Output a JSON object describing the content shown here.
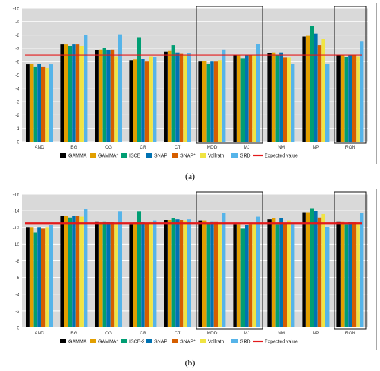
{
  "colors": {
    "GAMMA": "#000000",
    "GAMMA*": "#e29f00",
    "ISCE": "#009e73",
    "SNAP": "#0072b2",
    "SNAP*": "#d55e00",
    "Vollrath": "#f0e442",
    "GRD": "#56b4e9",
    "expected": "#e31a1c",
    "plot_bg": "#d9d9d9",
    "grid": "#ffffff"
  },
  "panels": [
    {
      "caption_prefix": "(",
      "caption_letter": "a",
      "caption_suffix": ")"
    },
    {
      "caption_prefix": "(",
      "caption_letter": "b",
      "caption_suffix": ")"
    }
  ],
  "chart_data": [
    {
      "type": "bar",
      "title": "",
      "xlabel": "",
      "ylabel": "",
      "ylim": [
        0,
        -10
      ],
      "yticks": [
        "0",
        "-1",
        "-2",
        "-3",
        "-4",
        "-5",
        "-6",
        "-7",
        "-8",
        "-9",
        "-10"
      ],
      "grid": true,
      "legend_position": "bottom",
      "categories": [
        "AND",
        "BG",
        "CG",
        "CR",
        "CT",
        "MDD",
        "MJ",
        "NM",
        "NP",
        "RON"
      ],
      "highlighted_categories": [
        [
          "MDD",
          "MJ"
        ],
        [
          "RON"
        ]
      ],
      "series": [
        {
          "name": "GAMMA",
          "values": [
            -5.8,
            -7.3,
            -6.85,
            -6.1,
            -6.75,
            -6.0,
            -6.45,
            -6.65,
            -7.9,
            -6.5
          ]
        },
        {
          "name": "GAMMA*",
          "values": [
            -5.85,
            -7.3,
            -6.9,
            -6.15,
            -6.8,
            -6.05,
            -6.5,
            -6.7,
            -7.95,
            -6.5
          ]
        },
        {
          "name": "ISCE",
          "values": [
            -5.6,
            -7.2,
            -7.0,
            -7.8,
            -7.25,
            -5.85,
            -6.25,
            -6.55,
            -8.7,
            -6.35
          ]
        },
        {
          "name": "SNAP",
          "values": [
            -5.85,
            -7.3,
            -6.85,
            -6.2,
            -6.7,
            -6.0,
            -6.45,
            -6.7,
            -8.1,
            -6.5
          ]
        },
        {
          "name": "SNAP*",
          "values": [
            -5.6,
            -7.3,
            -6.9,
            -6.0,
            -6.6,
            -6.0,
            -6.45,
            -6.3,
            -7.25,
            -6.45
          ]
        },
        {
          "name": "Vollrath",
          "values": [
            -5.55,
            -7.2,
            -6.4,
            -6.4,
            -6.5,
            -6.1,
            -6.5,
            -6.3,
            -7.7,
            -6.4
          ]
        },
        {
          "name": "GRD",
          "values": [
            -5.8,
            -8.0,
            -8.05,
            -6.35,
            -6.65,
            -6.9,
            -7.35,
            -5.85,
            -5.85,
            -7.5
          ]
        }
      ],
      "expected_value": -6.5,
      "legend_labels": [
        "GAMMA",
        "GAMMA*",
        "ISCE",
        "SNAP",
        "SNAP*",
        "Vollrath",
        "GRD"
      ],
      "expected_label": "Expected value"
    },
    {
      "type": "bar",
      "title": "",
      "xlabel": "",
      "ylabel": "",
      "ylim": [
        0,
        -16
      ],
      "yticks": [
        "0",
        "-2",
        "-4",
        "-6",
        "-8",
        "-10",
        "-12",
        "-14",
        "-16"
      ],
      "grid": true,
      "legend_position": "bottom",
      "categories": [
        "AND",
        "BG",
        "CG",
        "CR",
        "CT",
        "MDD",
        "MJ",
        "NM",
        "NP",
        "RON"
      ],
      "highlighted_categories": [
        [
          "MDD",
          "MJ"
        ],
        [
          "RON"
        ]
      ],
      "series": [
        {
          "name": "GAMMA",
          "values": [
            -12.0,
            -13.4,
            -12.7,
            -12.4,
            -12.9,
            -12.8,
            -12.4,
            -13.0,
            -13.8,
            -12.7
          ]
        },
        {
          "name": "GAMMA*",
          "values": [
            -12.0,
            -13.4,
            -12.6,
            -12.6,
            -12.9,
            -12.8,
            -12.4,
            -13.1,
            -13.8,
            -12.7
          ]
        },
        {
          "name": "ISCE-2",
          "values": [
            -11.4,
            -13.2,
            -12.7,
            -13.9,
            -13.1,
            -12.5,
            -11.9,
            -12.4,
            -14.3,
            -12.4
          ]
        },
        {
          "name": "SNAP",
          "values": [
            -12.0,
            -13.4,
            -12.6,
            -12.6,
            -13.0,
            -12.7,
            -12.3,
            -13.1,
            -14.0,
            -12.6
          ]
        },
        {
          "name": "SNAP*",
          "values": [
            -11.9,
            -13.4,
            -12.6,
            -12.5,
            -12.9,
            -12.7,
            -12.4,
            -12.5,
            -13.2,
            -12.6
          ]
        },
        {
          "name": "Vollrath",
          "values": [
            -12.0,
            -13.3,
            -12.5,
            -12.7,
            -12.8,
            -12.6,
            -12.5,
            -12.8,
            -13.6,
            -12.6
          ]
        },
        {
          "name": "GRD",
          "values": [
            -12.3,
            -14.2,
            -13.9,
            -12.8,
            -13.0,
            -13.7,
            -13.3,
            -12.4,
            -12.1,
            -13.7
          ]
        }
      ],
      "expected_value": -12.5,
      "legend_labels": [
        "GAMMA",
        "GAMMA*",
        "ISCE-2",
        "SNAP",
        "SNAP*",
        "Vollrath",
        "GRD"
      ],
      "expected_label": "Expected value"
    }
  ]
}
